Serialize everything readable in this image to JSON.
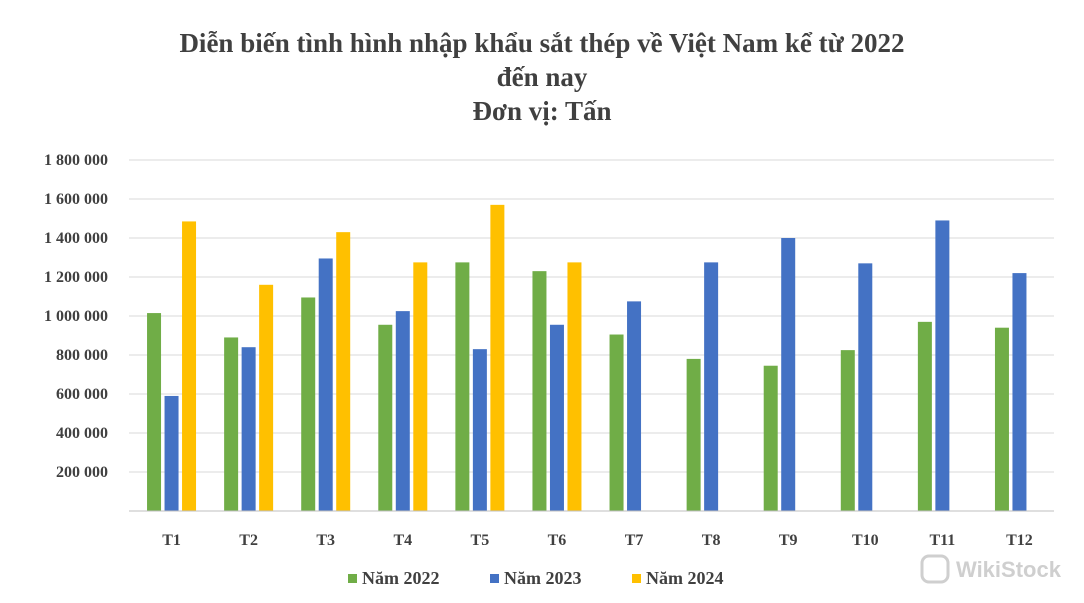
{
  "chart_data": {
    "type": "bar",
    "title": "Diễn biến tình hình nhập khẩu sắt thép về Việt Nam kể từ 2022",
    "title_line2": "đến nay",
    "subtitle": "Đơn vị: Tấn",
    "xlabel": "",
    "ylabel": "",
    "ylim": [
      0,
      1800000
    ],
    "yticks": [
      200000,
      400000,
      600000,
      800000,
      1000000,
      1200000,
      1400000,
      1600000,
      1800000
    ],
    "ytick_labels": [
      "200 000",
      "400 000",
      "600 000",
      "800 000",
      "1 000 000",
      "1 200 000",
      "1 400 000",
      "1 600 000",
      "1 800 000"
    ],
    "grid": true,
    "legend_position": "bottom",
    "categories": [
      "T1",
      "T2",
      "T3",
      "T4",
      "T5",
      "T6",
      "T7",
      "T8",
      "T9",
      "T10",
      "T11",
      "T12"
    ],
    "series": [
      {
        "name": "Năm 2022",
        "color": "#70ad47",
        "values": [
          1015000,
          890000,
          1095000,
          955000,
          1275000,
          1230000,
          905000,
          780000,
          745000,
          825000,
          970000,
          940000
        ]
      },
      {
        "name": "Năm 2023",
        "color": "#4472c4",
        "values": [
          590000,
          840000,
          1295000,
          1025000,
          830000,
          955000,
          1075000,
          1275000,
          1400000,
          1270000,
          1490000,
          1220000
        ]
      },
      {
        "name": "Năm 2024",
        "color": "#ffc000",
        "values": [
          1485000,
          1160000,
          1430000,
          1275000,
          1570000,
          1275000,
          null,
          null,
          null,
          null,
          null,
          null
        ]
      }
    ]
  },
  "watermark": {
    "text": "WikiStock",
    "icon": "wikistock-logo-icon"
  }
}
